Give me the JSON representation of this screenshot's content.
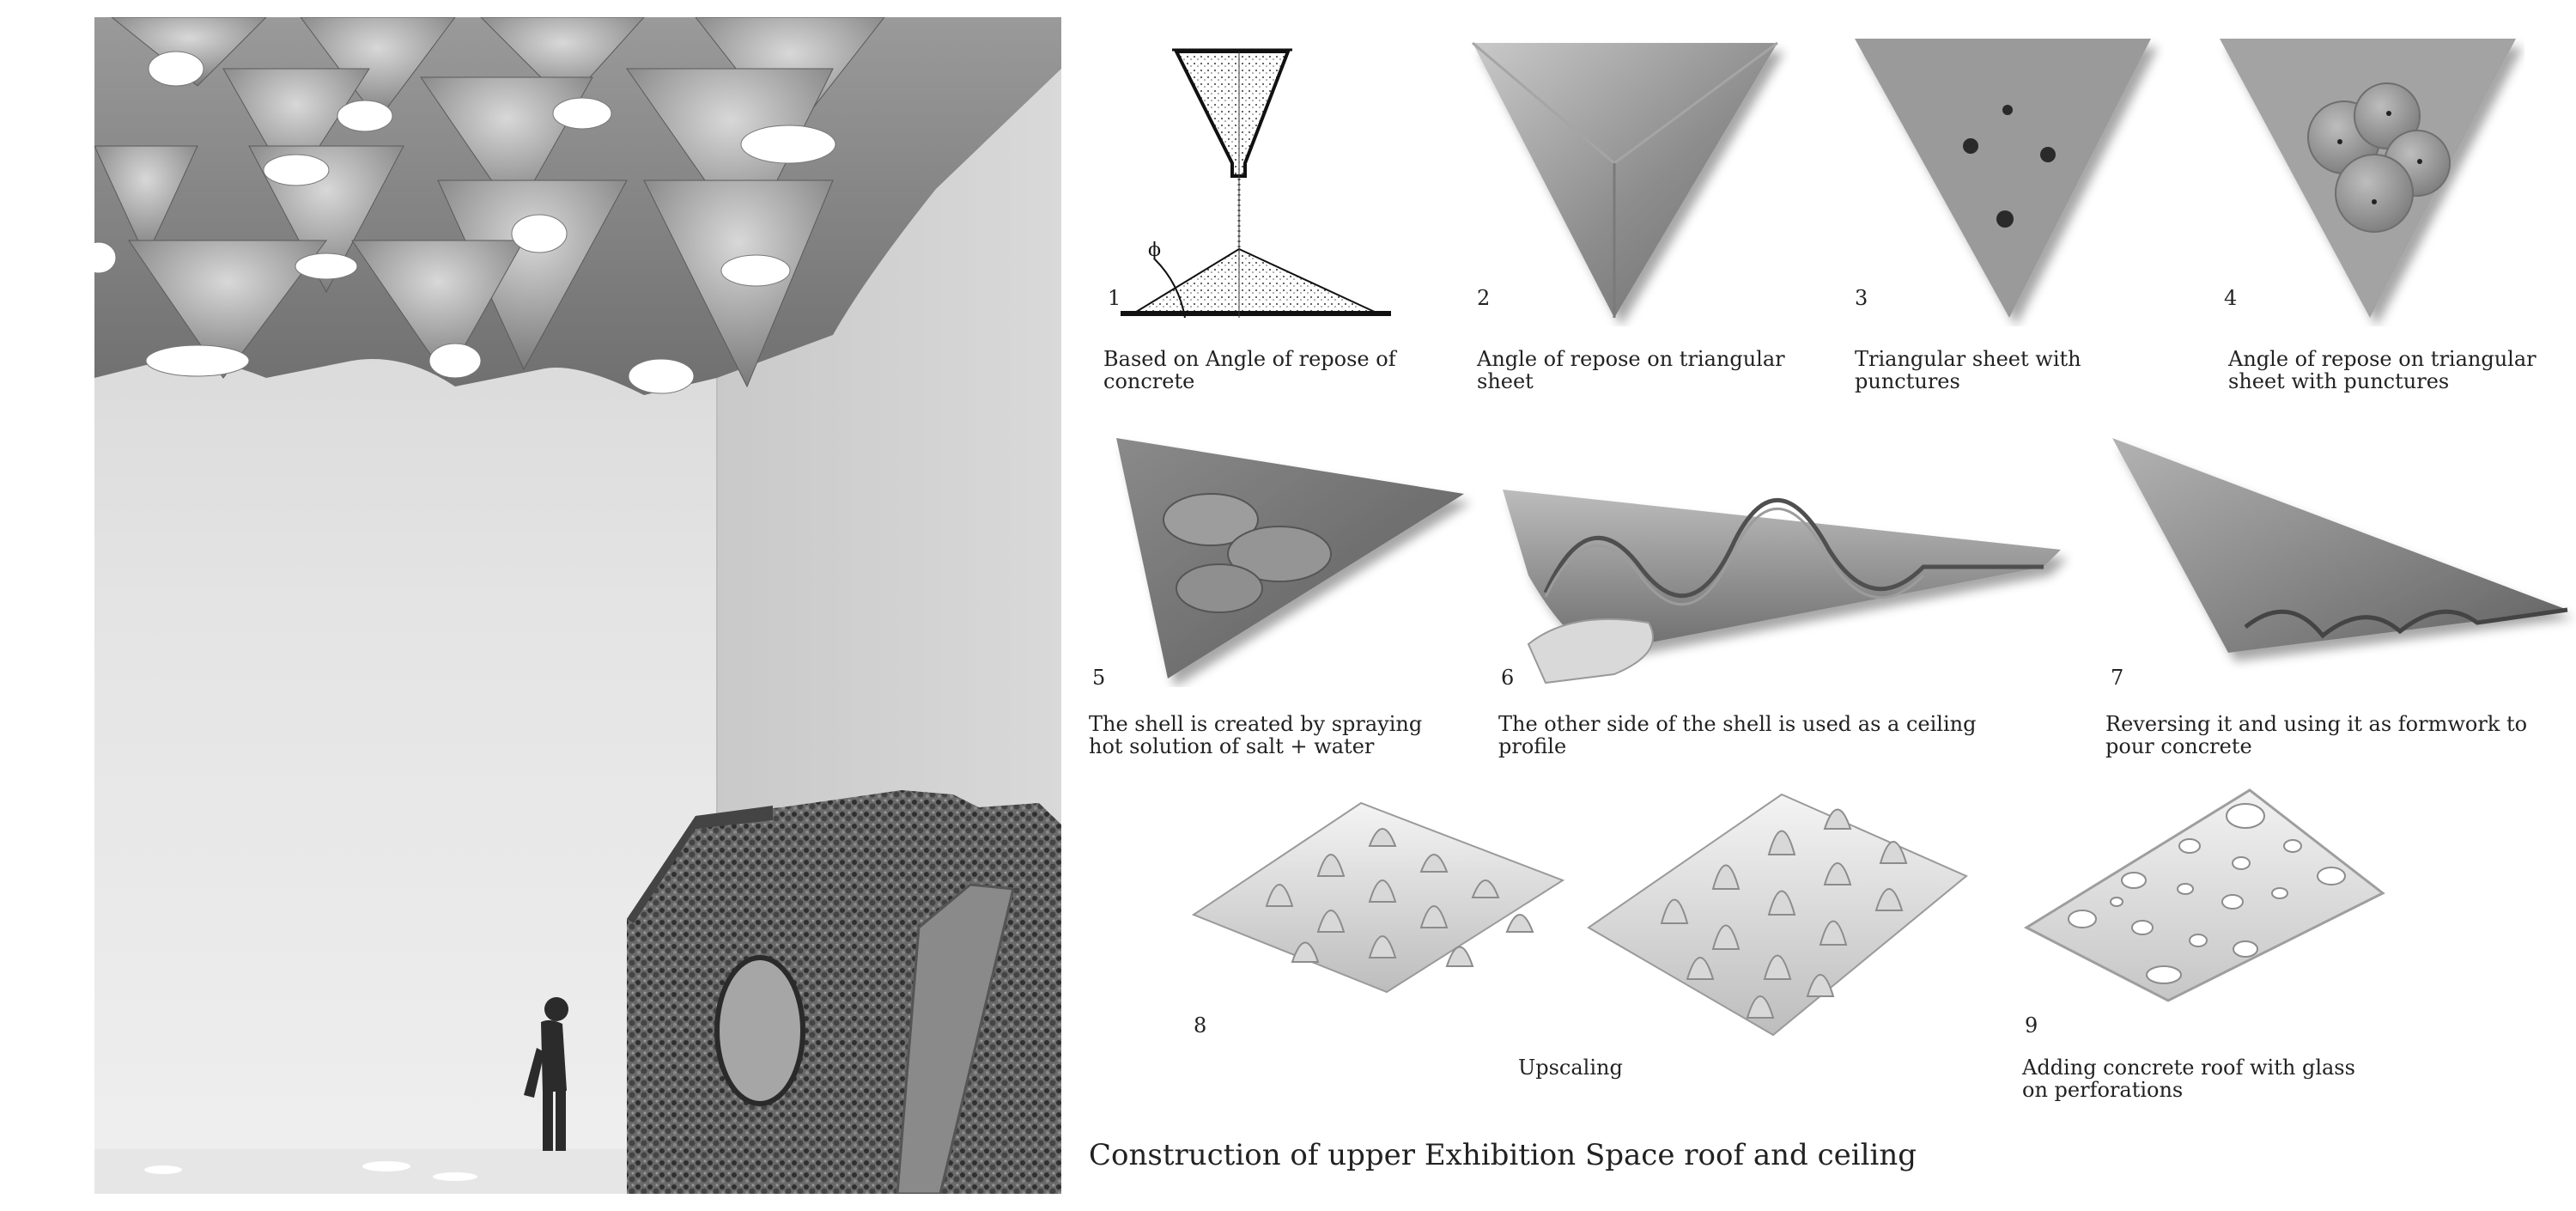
{
  "steps": [
    {
      "number": "1",
      "caption": "Based on Angle of repose of concrete"
    },
    {
      "number": "2",
      "caption": "Angle of repose on triangular sheet"
    },
    {
      "number": "3",
      "caption": "Triangular sheet with punctures"
    },
    {
      "number": "4",
      "caption": "Angle of repose on triangular sheet with punctures"
    },
    {
      "number": "5",
      "caption": "The shell is created by spraying hot solution of salt + water"
    },
    {
      "number": "6",
      "caption": "The other side of the shell is used as a ceiling profile"
    },
    {
      "number": "7",
      "caption": "Reversing it and using it as formwork to pour concrete"
    },
    {
      "number": "8",
      "caption": "Upscaling"
    },
    {
      "number": "9",
      "caption": "Adding concrete roof with glass on perforations"
    }
  ],
  "diagram_labels": {
    "phi": "ϕ"
  },
  "title": "Construction of upper Exhibition Space roof and ceiling"
}
